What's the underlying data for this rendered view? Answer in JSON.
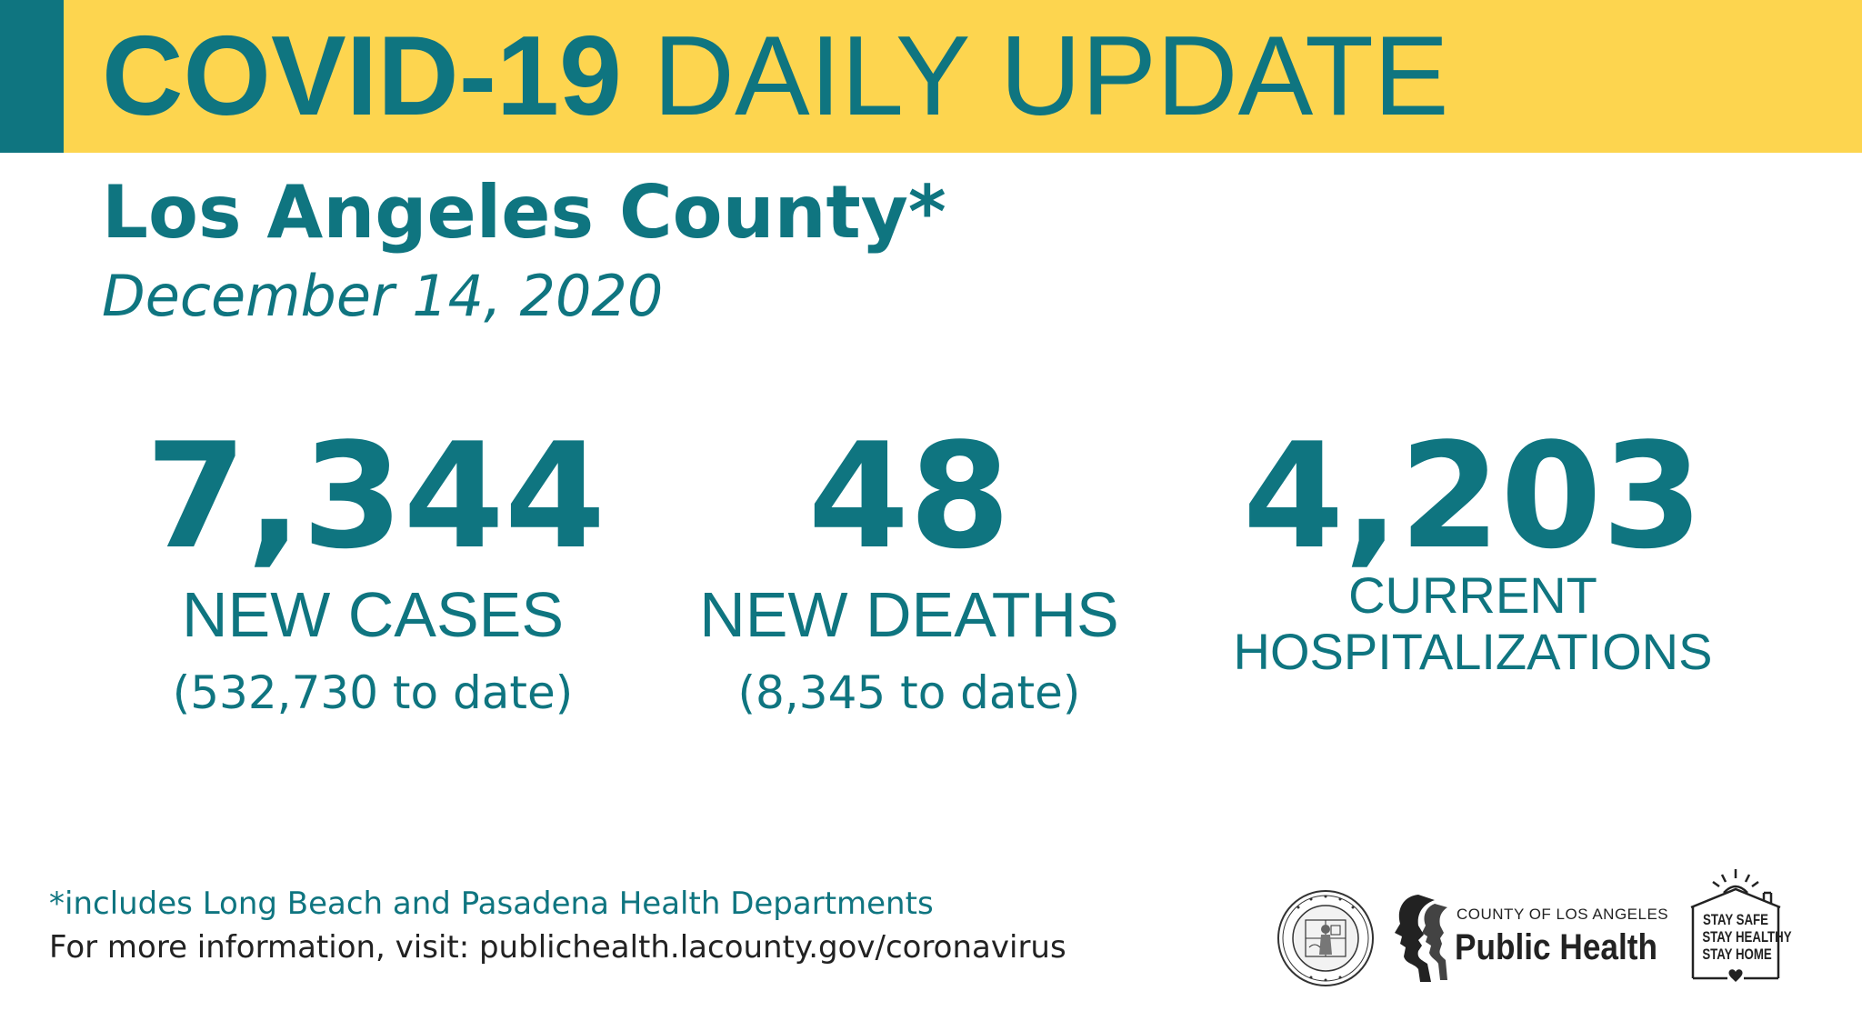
{
  "banner": {
    "title_bold": "COVID-19",
    "title_light": "DAILY UPDATE",
    "bg_color": "#fdd54f",
    "accent_color": "#0f7580"
  },
  "county": "Los Angeles County*",
  "date": "December 14, 2020",
  "stats": {
    "cases": {
      "number": "7,344",
      "label": "NEW CASES",
      "sub": "(532,730 to date)"
    },
    "deaths": {
      "number": "48",
      "label": "NEW DEATHS",
      "sub": "(8,345 to date)"
    },
    "hospitalizations": {
      "number": "4,203",
      "label_line1": "CURRENT",
      "label_line2": "HOSPITALIZATIONS"
    }
  },
  "footer": {
    "footnote": "*includes Long Beach and Pasadena Health Departments",
    "more_info": "For more information, visit: publichealth.lacounty.gov/coronavirus"
  },
  "logos": {
    "seal_icon": "county-seal-icon",
    "public_health_small": "COUNTY OF LOS ANGELES",
    "public_health_big": "Public Health",
    "staysafe_line1": "STAY SAFE",
    "staysafe_line2": "STAY HEALTHY",
    "staysafe_line3": "STAY HOME"
  },
  "text_color": "#0f7580"
}
